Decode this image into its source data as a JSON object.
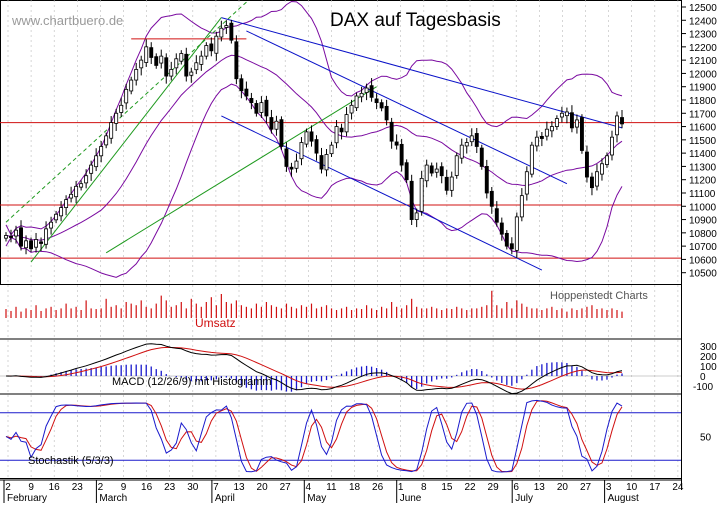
{
  "watermark": "www.chartbuero.de",
  "title": "DAX auf Tagesbasis",
  "source_label": "Hoppenstedt Charts",
  "colors": {
    "candle": "#000000",
    "bollinger": "#7a0aa0",
    "channel": "#0a12c8",
    "trend_green": "#1f9a1f",
    "horizontal_red": "#d01010",
    "volume": "#d01010",
    "macd_line": "#000000",
    "macd_signal": "#d01010",
    "histogram": "#1a1acc",
    "stoch_k": "#1a1acc",
    "stoch_d": "#d01010",
    "stoch_level": "#1a1acc"
  },
  "chart_data": [
    {
      "type": "candlestick",
      "title": "DAX auf Tagesbasis",
      "y_ticks": [
        12500,
        12400,
        12300,
        12200,
        12100,
        12000,
        11900,
        11800,
        11700,
        11600,
        11500,
        11400,
        11300,
        11200,
        11100,
        11000,
        10900,
        10800,
        10700,
        10600,
        10500
      ],
      "ylim": [
        10430,
        12530
      ],
      "horizontal_levels": [
        11630,
        11010,
        10610
      ],
      "x_day_ticks": [
        "2",
        "9",
        "16",
        "23",
        "2",
        "9",
        "16",
        "23",
        "30",
        "7",
        "13",
        "20",
        "27",
        "4",
        "11",
        "18",
        "26",
        "1",
        "8",
        "15",
        "22",
        "29",
        "6",
        "13",
        "20",
        "27",
        "3",
        "10",
        "17",
        "24"
      ],
      "x_month_labels": [
        "February",
        "March",
        "April",
        "May",
        "June",
        "July",
        "August"
      ],
      "closes": [
        10780,
        10770,
        10820,
        10700,
        10740,
        10680,
        10750,
        10720,
        10830,
        10880,
        10940,
        10990,
        11050,
        11090,
        11150,
        11170,
        11230,
        11310,
        11380,
        11450,
        11530,
        11630,
        11700,
        11760,
        11880,
        11950,
        12030,
        12100,
        12200,
        12120,
        12060,
        12130,
        11980,
        12030,
        12110,
        12150,
        11980,
        12010,
        12080,
        12130,
        12210,
        12170,
        12280,
        12340,
        12360,
        12250,
        11960,
        11870,
        11830,
        11780,
        11700,
        11780,
        11680,
        11580,
        11640,
        11450,
        11300,
        11280,
        11340,
        11480,
        11560,
        11490,
        11400,
        11280,
        11390,
        11460,
        11600,
        11560,
        11690,
        11760,
        11830,
        11850,
        11890,
        11820,
        11780,
        11740,
        11650,
        11490,
        11460,
        11310,
        11200,
        10900,
        10950,
        11210,
        11310,
        11250,
        11280,
        11230,
        11120,
        11220,
        11380,
        11460,
        11480,
        11530,
        11450,
        11300,
        11100,
        11000,
        10880,
        10790,
        10700,
        10680,
        10920,
        11080,
        11260,
        11460,
        11520,
        11510,
        11580,
        11600,
        11660,
        11700,
        11710,
        11590,
        11650,
        11420,
        11220,
        11140,
        11260,
        11320,
        11380,
        11520,
        11680,
        11620
      ]
    },
    {
      "type": "bar",
      "title": "Umsatz",
      "volume": [
        0.28,
        0.22,
        0.35,
        0.2,
        0.3,
        0.25,
        0.4,
        0.22,
        0.3,
        0.35,
        0.25,
        0.3,
        0.45,
        0.3,
        0.35,
        0.25,
        0.55,
        0.3,
        0.28,
        0.3,
        0.6,
        0.35,
        0.4,
        0.3,
        0.5,
        0.45,
        0.4,
        0.55,
        0.35,
        0.3,
        0.45,
        0.7,
        0.55,
        0.35,
        0.4,
        0.5,
        0.3,
        0.6,
        0.45,
        0.35,
        0.5,
        0.65,
        0.4,
        0.75,
        0.5,
        0.45,
        0.55,
        0.4,
        0.35,
        0.3,
        0.45,
        0.35,
        0.5,
        0.4,
        0.35,
        0.3,
        0.45,
        0.35,
        0.3,
        0.4,
        0.35,
        0.45,
        0.3,
        0.35,
        0.4,
        0.3,
        0.25,
        0.3,
        0.35,
        0.25,
        0.3,
        0.28,
        0.4,
        0.3,
        0.25,
        0.35,
        0.3,
        0.5,
        0.35,
        0.3,
        0.4,
        0.6,
        0.35,
        0.3,
        0.3,
        0.35,
        0.3,
        0.25,
        0.3,
        0.28,
        0.35,
        0.3,
        0.25,
        0.3,
        0.3,
        0.35,
        0.4,
        0.85,
        0.4,
        0.3,
        0.5,
        0.3,
        0.55,
        0.45,
        0.35,
        0.3,
        0.3,
        0.25,
        0.3,
        0.35,
        0.25,
        0.3,
        0.2,
        0.3,
        0.25,
        0.3,
        0.35,
        0.4,
        0.28,
        0.3,
        0.25,
        0.3,
        0.25,
        0.2
      ]
    },
    {
      "type": "line",
      "title": "MACD (12/26/9) mit Histogramm",
      "y_ticks": [
        300,
        200,
        100,
        0,
        -100
      ],
      "ylim": [
        -160,
        340
      ]
    },
    {
      "type": "line",
      "title": "Stochastik (5/3/3)",
      "y_ticks": [
        50
      ],
      "ylim": [
        0,
        100
      ],
      "levels": [
        80,
        20
      ]
    }
  ]
}
